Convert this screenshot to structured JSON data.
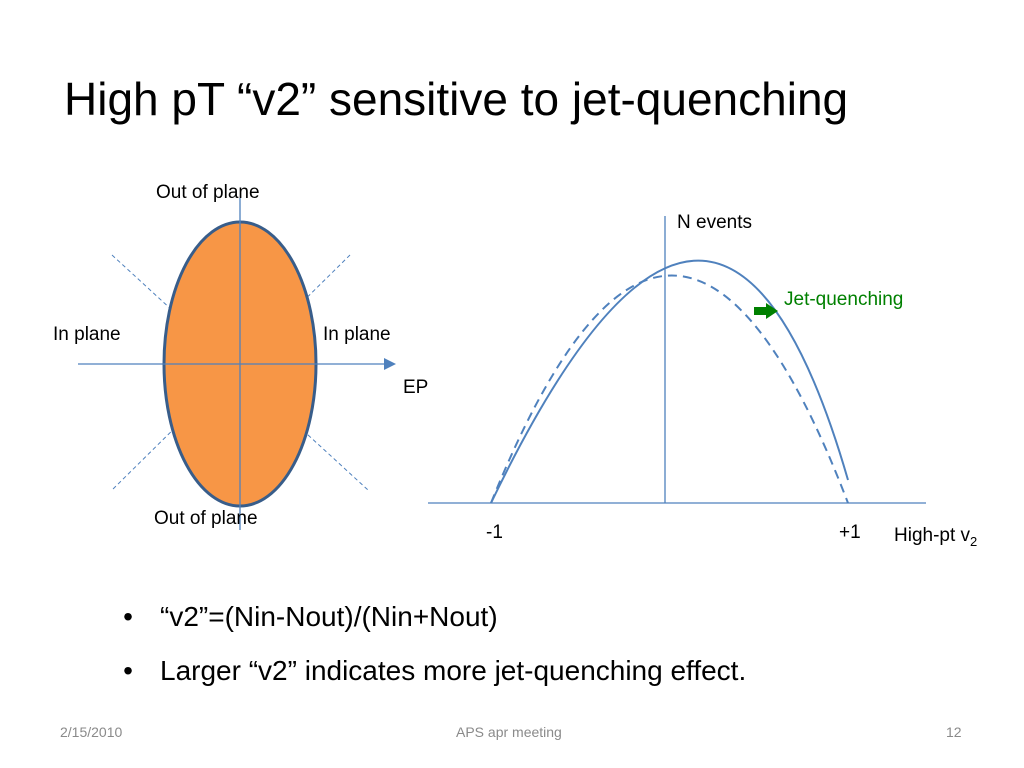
{
  "slide": {
    "title": "High pT “v2” sensitive to jet-quenching"
  },
  "left_diagram": {
    "top_label": "Out of plane",
    "bottom_label": "Out of plane",
    "left_label": "In plane",
    "right_label": "In plane",
    "axis_label": "EP",
    "ellipse_fill": "#f79646",
    "ellipse_stroke": "#385d8a",
    "axis_color": "#4f81bd"
  },
  "right_diagram": {
    "y_axis_label": "N events",
    "x_tick_left": "-1",
    "x_tick_right": "+1",
    "x_axis_label_main": "High-pt v",
    "x_axis_label_sub": "2",
    "annotation": "Jet-quenching",
    "annotation_color": "#008000",
    "curve_color": "#4f81bd"
  },
  "bullets": [
    "“v2”=(Nin-Nout)/(Nin+Nout)",
    "Larger “v2” indicates more jet-quenching effect."
  ],
  "bullet_glyph": "•",
  "footer": {
    "date": "2/15/2010",
    "center": "APS apr meeting",
    "page": "12"
  }
}
